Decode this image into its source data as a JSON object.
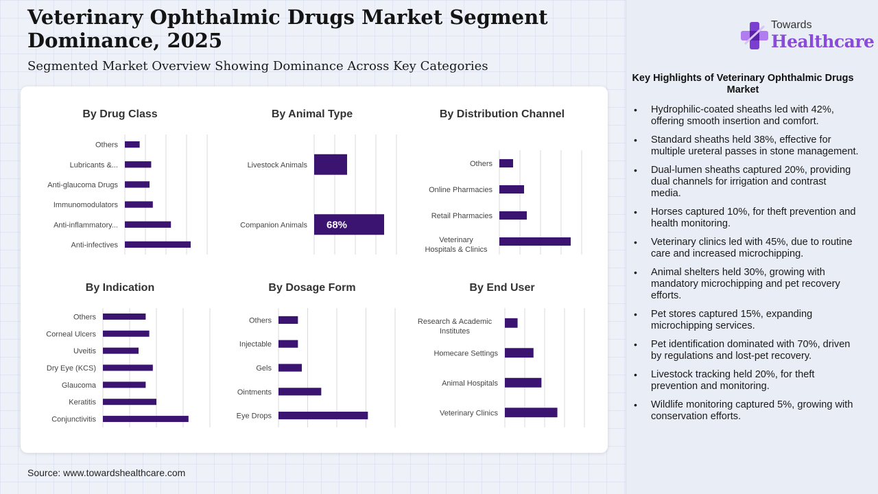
{
  "header": {
    "title": "Veterinary Ophthalmic Drugs Market Segment Dominance, 2025",
    "subtitle": "Segmented Market Overview Showing Dominance Across Key Categories"
  },
  "source": "Source: www.towardshealthcare.com",
  "logo": {
    "top_text": "Towards",
    "main_text": "Healthcare",
    "icon": "cross-logo-icon"
  },
  "highlights": {
    "title": "Key Highlights of Veterinary Ophthalmic Drugs Market",
    "items": [
      "Hydrophilic-coated sheaths led with 42%, offering smooth insertion and comfort.",
      "Standard sheaths held 38%, effective for multiple ureteral passes in stone management.",
      "Dual-lumen sheaths captured 20%, providing dual channels for irrigation and contrast media.",
      "Horses captured 10%, for theft prevention and health monitoring.",
      "Veterinary clinics led with 45%, due to routine care and increased microchipping.",
      "Animal shelters held 30%, growing with mandatory microchipping and pet recovery efforts.",
      "Pet stores captured 15%, expanding microchipping services.",
      "Pet identification dominated with 70%, driven by regulations and lost-pet recovery.",
      "Livestock tracking held 20%, for theft prevention and monitoring.",
      "Wildlife monitoring captured 5%, growing with conservation efforts."
    ]
  },
  "colors": {
    "bar": "#3a1470",
    "grid": "#d9d9d9"
  },
  "chart_data": [
    {
      "type": "bar",
      "orientation": "horizontal",
      "title": "By Drug Class",
      "categories": [
        "Others",
        "Lubricants &...",
        "Anti-glaucoma Drugs",
        "Immunomodulators",
        "Anti-inflammatory...",
        "Anti-infectives"
      ],
      "values": [
        9,
        16,
        15,
        17,
        28,
        40
      ],
      "xlim": [
        0,
        50
      ],
      "grid": true
    },
    {
      "type": "bar",
      "orientation": "horizontal",
      "title": "By Animal Type",
      "categories": [
        "Livestock Animals",
        "Companion Animals"
      ],
      "values": [
        32,
        68
      ],
      "data_labels": [
        "",
        "68%"
      ],
      "xlim": [
        0,
        80
      ],
      "grid": true
    },
    {
      "type": "bar",
      "orientation": "horizontal",
      "title": "By Distribution Channel",
      "categories": [
        "Others",
        "Online Pharmacies",
        "Retail Pharmacies",
        "Veterinary Hospitals & Clinics"
      ],
      "values": [
        10,
        18,
        20,
        52
      ],
      "xlim": [
        0,
        60
      ],
      "grid": true
    },
    {
      "type": "bar",
      "orientation": "horizontal",
      "title": "By Indication",
      "categories": [
        "Others",
        "Corneal Ulcers",
        "Uveitis",
        "Dry Eye (KCS)",
        "Glaucoma",
        "Keratitis",
        "Conjunctivitis"
      ],
      "values": [
        12,
        13,
        10,
        14,
        12,
        15,
        24
      ],
      "xlim": [
        0,
        30
      ],
      "grid": true
    },
    {
      "type": "bar",
      "orientation": "horizontal",
      "title": "By Dosage Form",
      "categories": [
        "Others",
        "Injectable",
        "Gels",
        "Ointments",
        "Eye Drops"
      ],
      "values": [
        10,
        10,
        12,
        22,
        46
      ],
      "xlim": [
        0,
        60
      ],
      "grid": true
    },
    {
      "type": "bar",
      "orientation": "horizontal",
      "title": "By End User",
      "categories": [
        "Research & Academic Institutes",
        "Homecare Settings",
        "Animal Hospitals",
        "Veterinary Clinics"
      ],
      "values": [
        8,
        18,
        23,
        33
      ],
      "xlim": [
        0,
        50
      ],
      "grid": true
    }
  ]
}
